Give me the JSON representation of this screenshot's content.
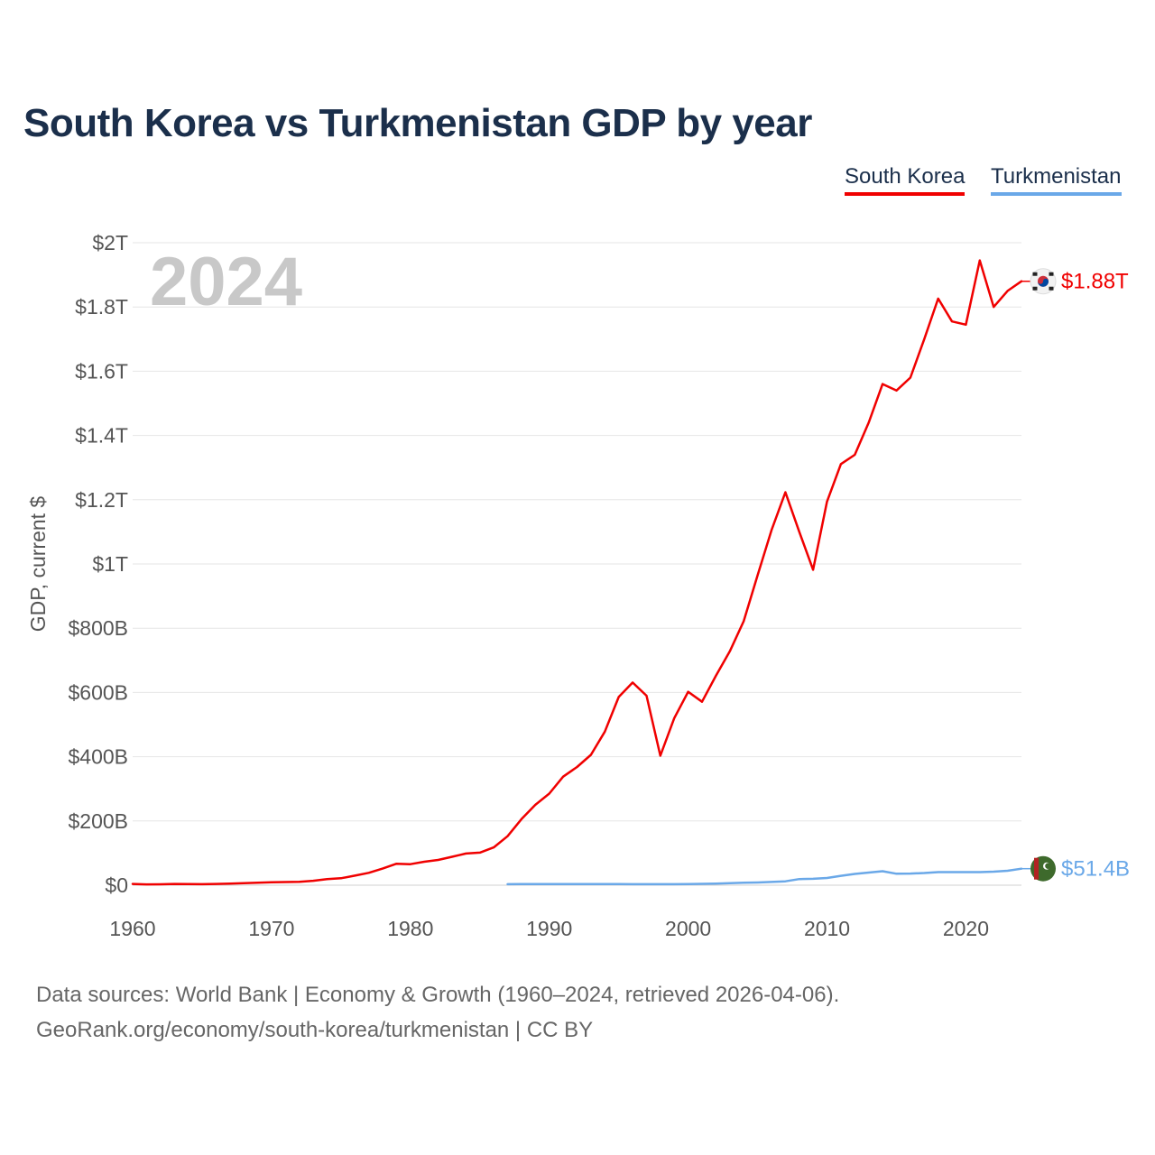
{
  "title": "South Korea vs Turkmenistan GDP by year",
  "legend": [
    {
      "name": "South Korea",
      "color": "#f00000"
    },
    {
      "name": "Turkmenistan",
      "color": "#6aa8e8"
    }
  ],
  "source": {
    "line1": "Data sources: World Bank | Economy & Growth (1960–2024, retrieved 2026-04-06).",
    "line2": "GeoRank.org/economy/south-korea/turkmenistan | CC BY"
  },
  "chart_data": {
    "type": "line",
    "title": "South Korea vs Turkmenistan GDP by year",
    "watermark_year": "2024",
    "xlabel": "",
    "ylabel": "GDP, current $",
    "xlim": [
      1960,
      2024
    ],
    "ylim": [
      0,
      2000
    ],
    "y_unit": "billions USD",
    "x_ticks": [
      1960,
      1970,
      1980,
      1990,
      2000,
      2010,
      2020
    ],
    "y_ticks": [
      {
        "value": 0,
        "label": "$0"
      },
      {
        "value": 200,
        "label": "$200B"
      },
      {
        "value": 400,
        "label": "$400B"
      },
      {
        "value": 600,
        "label": "$600B"
      },
      {
        "value": 800,
        "label": "$800B"
      },
      {
        "value": 1000,
        "label": "$1T"
      },
      {
        "value": 1200,
        "label": "$1.2T"
      },
      {
        "value": 1400,
        "label": "$1.4T"
      },
      {
        "value": 1600,
        "label": "$1.6T"
      },
      {
        "value": 1800,
        "label": "$1.8T"
      },
      {
        "value": 2000,
        "label": "$2T"
      }
    ],
    "grid": true,
    "legend_position": "top-right",
    "series": [
      {
        "name": "South Korea",
        "color": "#f00000",
        "end_label": "$1.88T",
        "flag": "south-korea-flag-icon",
        "x": [
          1960,
          1961,
          1962,
          1963,
          1964,
          1965,
          1966,
          1967,
          1968,
          1969,
          1970,
          1971,
          1972,
          1973,
          1974,
          1975,
          1976,
          1977,
          1978,
          1979,
          1980,
          1981,
          1982,
          1983,
          1984,
          1985,
          1986,
          1987,
          1988,
          1989,
          1990,
          1991,
          1992,
          1993,
          1994,
          1995,
          1996,
          1997,
          1998,
          1999,
          2000,
          2001,
          2002,
          2003,
          2004,
          2005,
          2006,
          2007,
          2008,
          2009,
          2010,
          2011,
          2012,
          2013,
          2014,
          2015,
          2016,
          2017,
          2018,
          2019,
          2020,
          2021,
          2022,
          2023,
          2024
        ],
        "values": [
          4,
          2.4,
          2.8,
          3.9,
          3.5,
          3.1,
          3.8,
          4.8,
          6.2,
          7.7,
          9,
          9.9,
          10.8,
          13.8,
          19.2,
          21.7,
          29.8,
          38.4,
          51.6,
          66.9,
          65.4,
          72.9,
          78.7,
          88.5,
          98.5,
          101.3,
          117.6,
          152.6,
          205.6,
          250.2,
          285,
          338,
          368,
          406,
          478,
          586,
          631,
          590,
          403,
          520,
          602,
          571,
          652,
          728,
          822,
          965,
          1105,
          1223,
          1100,
          982,
          1194,
          1311,
          1340,
          1440,
          1560,
          1540,
          1580,
          1700,
          1826,
          1755,
          1745,
          1945,
          1800,
          1850,
          1880
        ]
      },
      {
        "name": "Turkmenistan",
        "color": "#6aa8e8",
        "end_label": "$51.4B",
        "flag": "turkmenistan-flag-icon",
        "x": [
          1987,
          1988,
          1989,
          1990,
          1991,
          1992,
          1993,
          1994,
          1995,
          1996,
          1997,
          1998,
          1999,
          2000,
          2001,
          2002,
          2003,
          2004,
          2005,
          2006,
          2007,
          2008,
          2009,
          2010,
          2011,
          2012,
          2013,
          2014,
          2015,
          2016,
          2017,
          2018,
          2019,
          2020,
          2021,
          2022,
          2023,
          2024
        ],
        "values": [
          3,
          3.5,
          3.6,
          3.5,
          3.5,
          3.4,
          3.4,
          3.3,
          3.3,
          3.2,
          3.1,
          3.1,
          3.2,
          3.5,
          4.2,
          5,
          6.2,
          7.5,
          8.5,
          10,
          12,
          19,
          20,
          22.6,
          29.2,
          35.2,
          39.2,
          43.5,
          35.8,
          36.2,
          37.9,
          40.8,
          40.8,
          40.8,
          40.8,
          42,
          45,
          51.4
        ]
      }
    ]
  }
}
